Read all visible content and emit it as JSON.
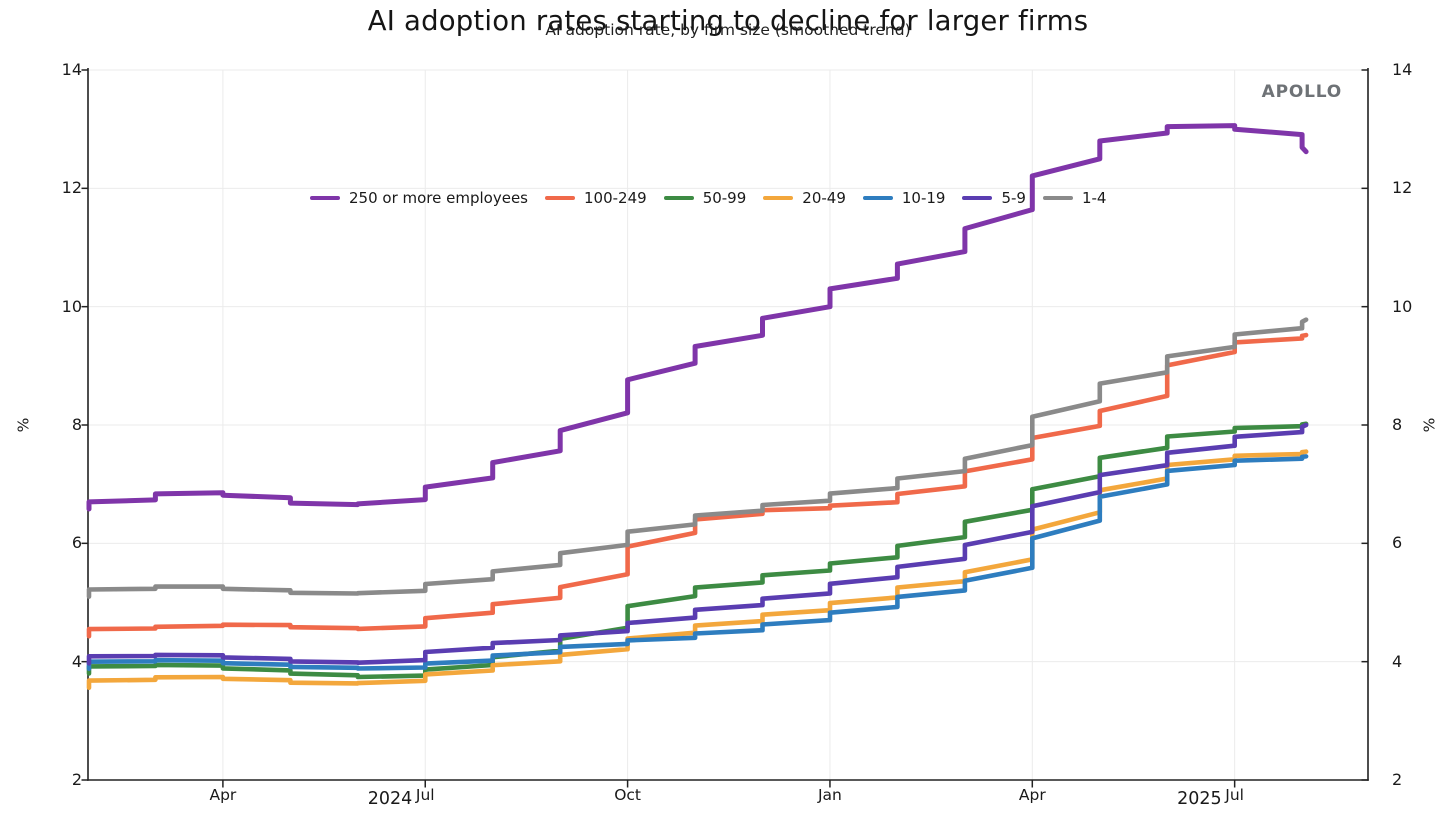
{
  "title": "AI adoption rates starting to decline for larger firms",
  "subtitle": "AI adoption rate, by firm size (smoothed trend)",
  "watermark": "APOLLO",
  "axes": {
    "y_label_left": "%",
    "y_label_right": "%",
    "y_ticks": [
      2,
      4,
      6,
      8,
      10,
      12,
      14
    ],
    "x_ticks": [
      {
        "label": "Apr",
        "year": "",
        "month_index": 2
      },
      {
        "label": "Jul",
        "year": "2024",
        "month_index": 5
      },
      {
        "label": "Oct",
        "year": "",
        "month_index": 8
      },
      {
        "label": "Jan",
        "year": "",
        "month_index": 11
      },
      {
        "label": "Apr",
        "year": "",
        "month_index": 14
      },
      {
        "label": "Jul",
        "year": "2025",
        "month_index": 17
      }
    ]
  },
  "chart_data": {
    "type": "line",
    "step_style": "monthly-steps",
    "title": "AI adoption rates starting to decline for larger firms",
    "subtitle": "AI adoption rate, by firm size (smoothed trend)",
    "ylabel": "%",
    "ylim": [
      2,
      14
    ],
    "grid": true,
    "legend_position": "top-center",
    "x_months": [
      "Feb 2024",
      "Mar 2024",
      "Apr 2024",
      "May 2024",
      "Jun 2024",
      "Jul 2024",
      "Aug 2024",
      "Sep 2024",
      "Oct 2024",
      "Nov 2024",
      "Dec 2024",
      "Jan 2025",
      "Feb 2025",
      "Mar 2025",
      "Apr 2025",
      "May 2025",
      "Jun 2025",
      "Jul 2025",
      "Aug 2025"
    ],
    "series": [
      {
        "name": "250 or more employees",
        "color": "#7f35a9",
        "values": [
          6.7,
          6.87,
          6.8,
          6.65,
          6.67,
          7.02,
          7.45,
          8.02,
          8.95,
          9.42,
          9.9,
          10.4,
          10.8,
          11.45,
          12.4,
          12.9,
          13.08,
          12.98,
          12.62
        ]
      },
      {
        "name": "100-249",
        "color": "#f0694a",
        "values": [
          4.55,
          4.6,
          4.63,
          4.57,
          4.55,
          4.78,
          5.02,
          5.32,
          6.1,
          6.48,
          6.58,
          6.65,
          6.88,
          7.3,
          7.9,
          8.32,
          9.18,
          9.45,
          9.52
        ]
      },
      {
        "name": "50-99",
        "color": "#3d8b43",
        "values": [
          3.92,
          3.95,
          3.87,
          3.78,
          3.73,
          3.9,
          4.12,
          4.45,
          5.06,
          5.3,
          5.5,
          5.7,
          6.02,
          6.45,
          7.03,
          7.55,
          7.87,
          7.97,
          8.02
        ]
      },
      {
        "name": "20-49",
        "color": "#f3a73c",
        "values": [
          3.68,
          3.75,
          3.7,
          3.63,
          3.64,
          3.82,
          3.97,
          4.15,
          4.45,
          4.65,
          4.83,
          5.03,
          5.31,
          5.56,
          6.4,
          7.02,
          7.4,
          7.5,
          7.55
        ]
      },
      {
        "name": "10-19",
        "color": "#2e7dbf",
        "values": [
          4.0,
          4.03,
          3.96,
          3.9,
          3.88,
          3.99,
          4.13,
          4.28,
          4.38,
          4.5,
          4.66,
          4.87,
          5.15,
          5.42,
          6.25,
          6.92,
          7.3,
          7.42,
          7.47
        ]
      },
      {
        "name": "5-9",
        "color": "#5a3db1",
        "values": [
          4.09,
          4.12,
          4.06,
          3.99,
          3.98,
          4.21,
          4.34,
          4.47,
          4.7,
          4.92,
          5.1,
          5.37,
          5.66,
          6.05,
          6.77,
          7.25,
          7.6,
          7.85,
          8.0
        ]
      },
      {
        "name": "1-4",
        "color": "#8a8a8a",
        "values": [
          5.22,
          5.28,
          5.22,
          5.15,
          5.16,
          5.35,
          5.57,
          5.9,
          6.27,
          6.52,
          6.68,
          6.88,
          7.15,
          7.5,
          8.3,
          8.8,
          9.25,
          9.6,
          9.78
        ]
      }
    ],
    "style": {
      "grid_color": "#ebebeb",
      "axis_color": "#222222",
      "text_color": "#1a1a1a"
    }
  }
}
